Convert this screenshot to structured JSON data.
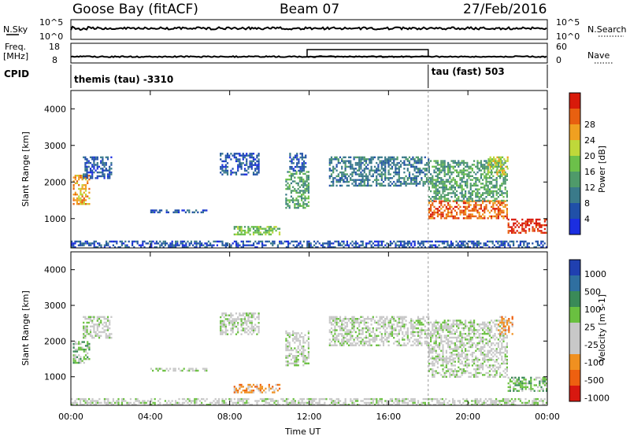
{
  "header": {
    "station": "Goose Bay (fitACF)",
    "beam": "Beam 07",
    "date": "27/Feb/2016"
  },
  "left_labels": {
    "nsky": "N.Sky",
    "freq_line1": "Freq.",
    "freq_line2": "[MHz]",
    "cpid": "CPID"
  },
  "right_labels": {
    "nsearch": "N.Search",
    "nave": "Nave"
  },
  "noise_panel": {
    "left_ticks": [
      "10^5",
      "10^0"
    ],
    "right_ticks": [
      "10^5",
      "10^0"
    ]
  },
  "freq_panel": {
    "left_ticks": [
      "18",
      "8"
    ],
    "right_ticks": [
      "60",
      "0"
    ]
  },
  "cpid_panel": {
    "segments": [
      {
        "label": "themis (tau) -3310",
        "start_hour": 0
      },
      {
        "label": "tau (fast) 503",
        "start_hour": 18
      }
    ]
  },
  "colors": {
    "power": [
      "#1b2ee0",
      "#2050a8",
      "#3a7a8a",
      "#4f9a6a",
      "#6cc04a",
      "#bfd83a",
      "#f0a020",
      "#e86010",
      "#d81a0a"
    ],
    "velocity": [
      "#2040b0",
      "#2f6fa0",
      "#3a8a58",
      "#6ac040",
      "#c8c8c8",
      "#c8c8c8",
      "#f09020",
      "#ee6010",
      "#d81810"
    ]
  },
  "chart_data": [
    {
      "type": "heatmap",
      "name": "power",
      "xlabel": "",
      "ylabel": "Slant Range [km]",
      "xlim": [
        0,
        24
      ],
      "ylim": [
        200,
        4500
      ],
      "y_ticks": [
        "1000",
        "2000",
        "3000",
        "4000"
      ],
      "colorbar": {
        "label": "Power [dB]",
        "ticks": [
          "4",
          "8",
          "12",
          "16",
          "20",
          "24",
          "28"
        ]
      },
      "echo_regions": [
        {
          "t0": 0.1,
          "t1": 0.9,
          "r0": 1400,
          "r1": 2200,
          "level": 6
        },
        {
          "t0": 0.6,
          "t1": 2.0,
          "r0": 2100,
          "r1": 2700,
          "level": 1
        },
        {
          "t0": 4.0,
          "t1": 6.8,
          "r0": 1150,
          "r1": 1250,
          "level": 1
        },
        {
          "t0": 7.5,
          "t1": 9.5,
          "r0": 2200,
          "r1": 2800,
          "level": 1
        },
        {
          "t0": 8.2,
          "t1": 10.5,
          "r0": 550,
          "r1": 800,
          "level": 4
        },
        {
          "t0": 10.8,
          "t1": 12.0,
          "r0": 1300,
          "r1": 2300,
          "level": 3
        },
        {
          "t0": 11.0,
          "t1": 11.8,
          "r0": 2300,
          "r1": 2800,
          "level": 1
        },
        {
          "t0": 13.0,
          "t1": 18.0,
          "r0": 1900,
          "r1": 2700,
          "level": 2
        },
        {
          "t0": 18.0,
          "t1": 22.0,
          "r0": 1000,
          "r1": 1500,
          "level": 7
        },
        {
          "t0": 18.0,
          "t1": 22.0,
          "r0": 1500,
          "r1": 2600,
          "level": 3
        },
        {
          "t0": 21.0,
          "t1": 22.0,
          "r0": 2200,
          "r1": 2700,
          "level": 5
        },
        {
          "t0": 22.0,
          "t1": 24.0,
          "r0": 600,
          "r1": 1000,
          "level": 8
        },
        {
          "t0": 0.0,
          "t1": 24.0,
          "r0": 200,
          "r1": 400,
          "level": 1
        }
      ]
    },
    {
      "type": "heatmap",
      "name": "velocity",
      "xlabel": "Time UT",
      "ylabel": "Slant Range [km]",
      "xlim": [
        0,
        24
      ],
      "ylim": [
        200,
        4500
      ],
      "x_ticks": [
        "00:00",
        "04:00",
        "08:00",
        "12:00",
        "16:00",
        "20:00",
        "00:00"
      ],
      "y_ticks": [
        "1000",
        "2000",
        "3000",
        "4000"
      ],
      "colorbar": {
        "label": "Velocity [m s-1]",
        "ticks": [
          "1000",
          "500",
          "100",
          "25",
          "-25",
          "-100",
          "-500",
          "-1000"
        ]
      },
      "echo_regions": [
        {
          "t0": 0.1,
          "t1": 0.9,
          "r0": 1400,
          "r1": 2000,
          "level": 3
        },
        {
          "t0": 0.6,
          "t1": 2.0,
          "r0": 2100,
          "r1": 2700,
          "level": 4
        },
        {
          "t0": 4.0,
          "t1": 6.8,
          "r0": 1150,
          "r1": 1250,
          "level": 4
        },
        {
          "t0": 7.5,
          "t1": 9.5,
          "r0": 2200,
          "r1": 2800,
          "level": 4
        },
        {
          "t0": 8.2,
          "t1": 10.5,
          "r0": 550,
          "r1": 800,
          "level": 6
        },
        {
          "t0": 10.8,
          "t1": 12.0,
          "r0": 1300,
          "r1": 2300,
          "level": 4
        },
        {
          "t0": 13.0,
          "t1": 18.0,
          "r0": 1900,
          "r1": 2700,
          "level": 4
        },
        {
          "t0": 18.0,
          "t1": 22.0,
          "r0": 1000,
          "r1": 1500,
          "level": 4
        },
        {
          "t0": 18.0,
          "t1": 22.0,
          "r0": 1500,
          "r1": 2600,
          "level": 4
        },
        {
          "t0": 21.5,
          "t1": 22.2,
          "r0": 2200,
          "r1": 2700,
          "level": 6
        },
        {
          "t0": 22.0,
          "t1": 24.0,
          "r0": 600,
          "r1": 1000,
          "level": 3
        },
        {
          "t0": 0.0,
          "t1": 24.0,
          "r0": 200,
          "r1": 400,
          "level": 4
        }
      ]
    }
  ]
}
